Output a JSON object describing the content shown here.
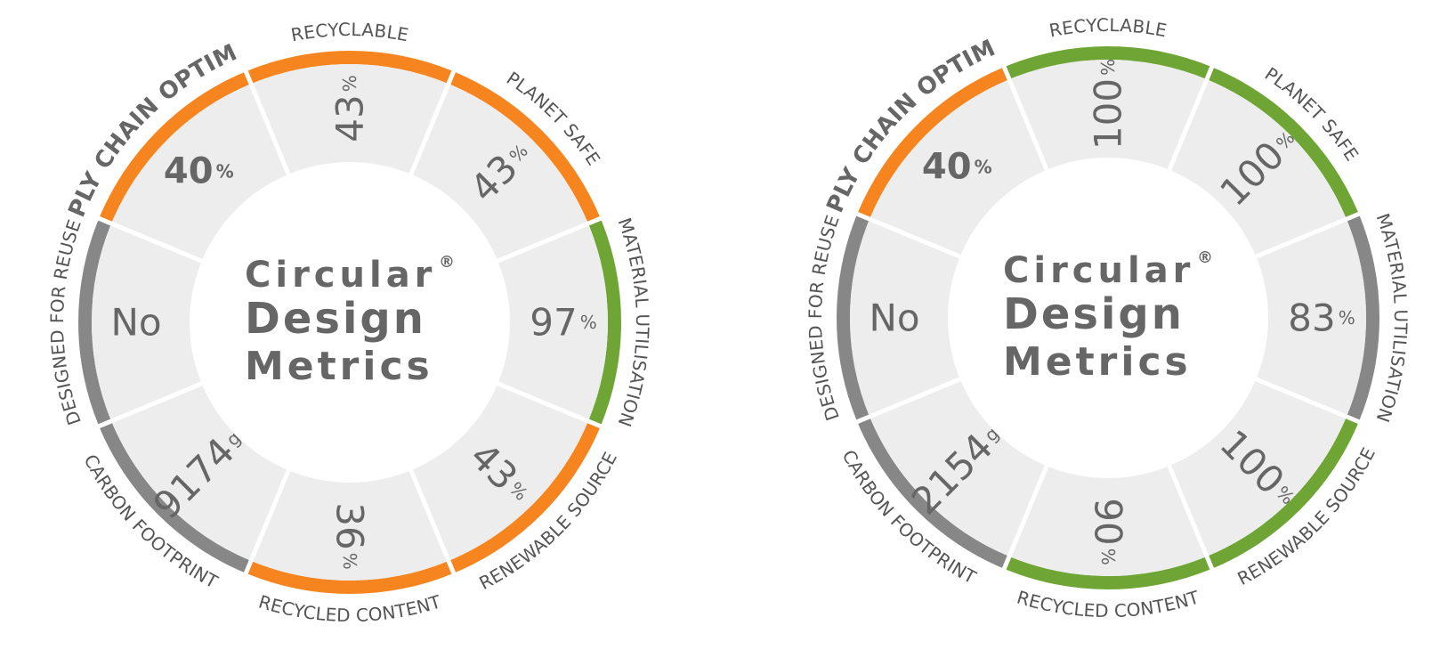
{
  "colors": {
    "orange": "#f7851f",
    "green": "#6fa535",
    "gray": "#878787",
    "cell": "#ededed",
    "text": "#666666"
  },
  "dials": [
    {
      "title_line1": "Circular",
      "title_line2": "Design",
      "title_line3": "Metrics",
      "registered": "®",
      "segments": [
        {
          "label": "SUPPLY CHAIN OPTIMIZED",
          "value": "40",
          "unit": "%",
          "status": "orange"
        },
        {
          "label": "RECYCLABLE",
          "value": "43",
          "unit": "%",
          "status": "orange"
        },
        {
          "label": "PLANET SAFE",
          "value": "43",
          "unit": "%",
          "status": "orange"
        },
        {
          "label": "MATERIAL UTILISATION",
          "value": "97",
          "unit": "%",
          "status": "green"
        },
        {
          "label": "RENEWABLE SOURCE",
          "value": "43",
          "unit": "%",
          "status": "orange"
        },
        {
          "label": "RECYCLED CONTENT",
          "value": "36",
          "unit": "%",
          "status": "orange"
        },
        {
          "label": "CARBON FOOTPRINT",
          "value": "9174",
          "unit": "g",
          "status": "gray"
        },
        {
          "label": "DESIGNED FOR REUSE",
          "value": "No",
          "unit": "",
          "status": "gray"
        }
      ]
    },
    {
      "title_line1": "Circular",
      "title_line2": "Design",
      "title_line3": "Metrics",
      "registered": "®",
      "segments": [
        {
          "label": "SUPPLY CHAIN OPTIMIZED",
          "value": "40",
          "unit": "%",
          "status": "orange"
        },
        {
          "label": "RECYCLABLE",
          "value": "100",
          "unit": "%",
          "status": "green"
        },
        {
          "label": "PLANET SAFE",
          "value": "100",
          "unit": "%",
          "status": "green"
        },
        {
          "label": "MATERIAL UTILISATION",
          "value": "83",
          "unit": "%",
          "status": "gray"
        },
        {
          "label": "RENEWABLE SOURCE",
          "value": "100",
          "unit": "%",
          "status": "green"
        },
        {
          "label": "RECYCLED CONTENT",
          "value": "90",
          "unit": "%",
          "status": "green"
        },
        {
          "label": "CARBON FOOTPRINT",
          "value": "2154",
          "unit": "g",
          "status": "gray"
        },
        {
          "label": "DESIGNED FOR REUSE",
          "value": "No",
          "unit": "",
          "status": "gray"
        }
      ]
    }
  ]
}
